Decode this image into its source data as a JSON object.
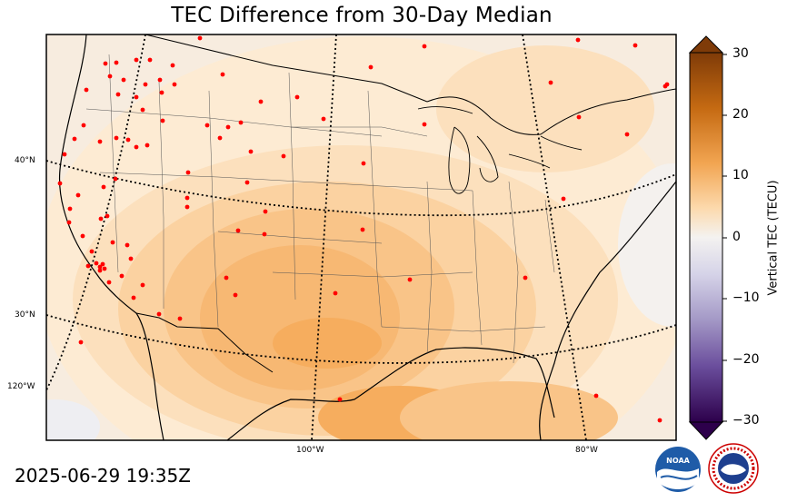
{
  "title": "TEC Difference from 30-Day Median",
  "timestamp": "2025-06-29 19:35Z",
  "colorbar": {
    "label": "Vertical TEC (TECU)",
    "ticks": [
      "30",
      "20",
      "10",
      "0",
      "−10",
      "−20",
      "−30"
    ],
    "range": [
      -30,
      30
    ],
    "colormap": "PuOr_r"
  },
  "graticule": {
    "lat_labels": [
      "40°N",
      "30°N",
      "120°W"
    ],
    "lon_labels": [
      "100°W",
      "80°W"
    ]
  },
  "colors": {
    "station_marker": "#ff0000",
    "tec_light": "#fdebd3",
    "tec_mid": "#fbd2a1",
    "tec_strong": "#f6ad5e",
    "tec_near_zero": "#f4f1ee"
  },
  "logos": [
    "noaa-logo",
    "national-weather-service-logo"
  ]
}
